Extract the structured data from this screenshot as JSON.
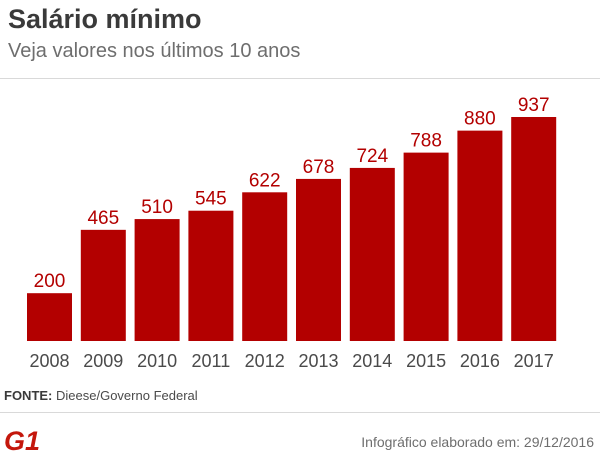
{
  "chart_data": {
    "type": "bar",
    "title": "Salário mínimo",
    "subtitle": "Veja valores nos últimos 10 anos",
    "categories": [
      "2008",
      "2009",
      "2010",
      "2011",
      "2012",
      "2013",
      "2014",
      "2015",
      "2016",
      "2017"
    ],
    "values": [
      200,
      465,
      510,
      545,
      622,
      678,
      724,
      788,
      880,
      937
    ],
    "ylim": [
      0,
      937
    ],
    "grid": false,
    "bar_color": "#b30000",
    "label_color": "#b30000"
  },
  "source": {
    "label": "FONTE:",
    "text": "Dieese/Governo Federal"
  },
  "footer": {
    "brand": "G1",
    "brand_color": "#c4170c",
    "credit": "Infográfico elaborado em: 29/12/2016"
  }
}
